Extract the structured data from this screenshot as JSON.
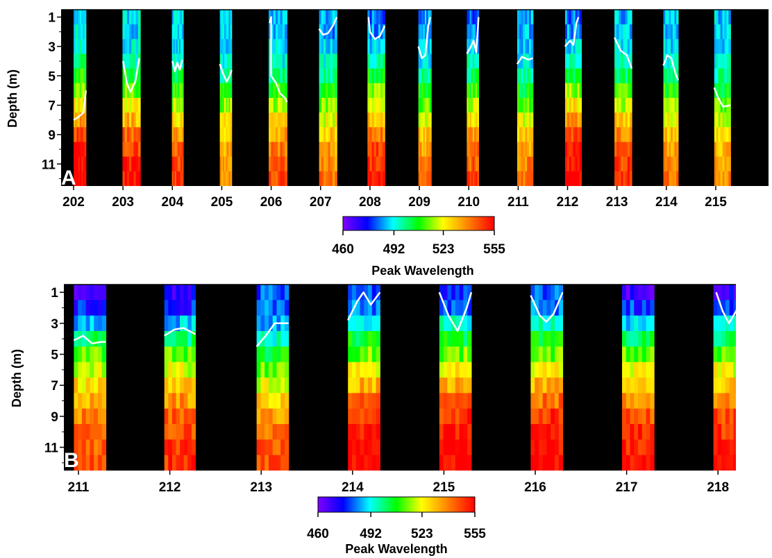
{
  "chart_data": [
    {
      "type": "heatmap",
      "panel_label": "A",
      "ylabel": "Depth (m)",
      "xlabel": "",
      "x_ticks": [
        "202",
        "203",
        "204",
        "205",
        "206",
        "207",
        "208",
        "209",
        "210",
        "211",
        "212",
        "213",
        "214",
        "215"
      ],
      "x_range": [
        202,
        215.3
      ],
      "y_ticks": [
        "1",
        "3",
        "5",
        "7",
        "9",
        "11"
      ],
      "y_range": [
        1,
        12
      ],
      "y_inverted": true,
      "value_unit": "Peak Wavelength (nm)",
      "background_no_data": "#000000",
      "contour_color": "#ffffff",
      "columns": [
        {
          "day": 202,
          "start": 202.0,
          "end": 202.25,
          "profile": [
            492,
            492,
            495,
            500,
            508,
            517,
            526,
            536,
            546,
            552,
            555,
            555
          ],
          "contour": [
            [
              202.0,
              8.0
            ],
            [
              202.1,
              7.8
            ],
            [
              202.2,
              7.5
            ],
            [
              202.25,
              6.0
            ]
          ]
        },
        {
          "day": 203,
          "start": 202.99,
          "end": 203.35,
          "profile": [
            490,
            490,
            492,
            496,
            504,
            513,
            522,
            532,
            541,
            547,
            551,
            553
          ],
          "contour": [
            [
              203.0,
              4.0
            ],
            [
              203.08,
              5.5
            ],
            [
              203.15,
              6.1
            ],
            [
              203.25,
              5.4
            ],
            [
              203.33,
              3.8
            ]
          ]
        },
        {
          "day": 204,
          "start": 203.99,
          "end": 204.22,
          "profile": [
            490,
            490,
            492,
            495,
            502,
            510,
            519,
            527,
            536,
            542,
            545,
            547
          ],
          "contour": [
            [
              204.0,
              4.0
            ],
            [
              204.05,
              4.7
            ],
            [
              204.1,
              4.1
            ],
            [
              204.15,
              4.6
            ],
            [
              204.2,
              3.9
            ]
          ]
        },
        {
          "day": 205,
          "start": 204.96,
          "end": 205.2,
          "profile": [
            488,
            488,
            490,
            493,
            500,
            508,
            516,
            523,
            529,
            533,
            535,
            536
          ],
          "contour": [
            [
              204.96,
              4.2
            ],
            [
              205.02,
              4.8
            ],
            [
              205.1,
              5.4
            ],
            [
              205.16,
              5.0
            ],
            [
              205.2,
              4.6
            ]
          ]
        },
        {
          "day": 206,
          "start": 205.95,
          "end": 206.32,
          "profile": [
            488,
            488,
            490,
            493,
            500,
            508,
            516,
            525,
            534,
            540,
            544,
            546
          ],
          "contour": [
            [
              205.97,
              1.4
            ],
            [
              206.0,
              1.0
            ],
            [
              206.0,
              5.0
            ],
            [
              206.1,
              5.5
            ],
            [
              206.18,
              6.2
            ],
            [
              206.28,
              6.5
            ],
            [
              206.32,
              6.8
            ]
          ]
        },
        {
          "day": 207,
          "start": 206.97,
          "end": 207.33,
          "profile": [
            485,
            485,
            488,
            492,
            498,
            506,
            514,
            522,
            530,
            535,
            538,
            540
          ],
          "contour": [
            [
              206.97,
              1.8
            ],
            [
              207.05,
              2.2
            ],
            [
              207.15,
              2.1
            ],
            [
              207.25,
              1.6
            ],
            [
              207.33,
              1.0
            ]
          ]
        },
        {
          "day": 208,
          "start": 207.95,
          "end": 208.3,
          "profile": [
            483,
            485,
            490,
            497,
            505,
            514,
            523,
            532,
            540,
            546,
            550,
            552
          ],
          "contour": [
            [
              207.97,
              1.0
            ],
            [
              208.0,
              2.0
            ],
            [
              208.1,
              2.5
            ],
            [
              208.2,
              2.3
            ],
            [
              208.3,
              1.6
            ]
          ]
        },
        {
          "day": 209,
          "start": 208.98,
          "end": 209.24,
          "profile": [
            485,
            485,
            488,
            492,
            498,
            506,
            514,
            522,
            530,
            535,
            538,
            540
          ],
          "contour": [
            [
              208.98,
              3.0
            ],
            [
              209.05,
              3.8
            ],
            [
              209.12,
              3.6
            ],
            [
              209.18,
              1.6
            ],
            [
              209.22,
              1.0
            ]
          ]
        },
        {
          "day": 210,
          "start": 209.96,
          "end": 210.2,
          "profile": [
            480,
            483,
            488,
            495,
            502,
            510,
            518,
            526,
            534,
            540,
            543,
            545
          ],
          "contour": [
            [
              209.96,
              3.5
            ],
            [
              210.03,
              3.1
            ],
            [
              210.1,
              2.6
            ],
            [
              210.15,
              3.4
            ],
            [
              210.2,
              1.0
            ]
          ]
        },
        {
          "day": 211,
          "start": 210.98,
          "end": 211.3,
          "profile": [
            487,
            487,
            489,
            492,
            498,
            505,
            513,
            521,
            529,
            535,
            538,
            540
          ],
          "contour": [
            [
              210.98,
              4.2
            ],
            [
              211.08,
              3.7
            ],
            [
              211.2,
              3.9
            ],
            [
              211.3,
              3.8
            ]
          ]
        },
        {
          "day": 212,
          "start": 211.95,
          "end": 212.28,
          "profile": [
            482,
            485,
            490,
            497,
            506,
            516,
            526,
            536,
            545,
            551,
            554,
            555
          ],
          "contour": [
            [
              211.95,
              3.0
            ],
            [
              212.05,
              2.6
            ],
            [
              212.12,
              2.9
            ],
            [
              212.18,
              1.4
            ],
            [
              212.22,
              1.0
            ]
          ]
        },
        {
          "day": 213,
          "start": 212.95,
          "end": 213.3,
          "profile": [
            488,
            488,
            490,
            494,
            501,
            510,
            519,
            529,
            538,
            544,
            547,
            549
          ],
          "contour": [
            [
              212.95,
              2.4
            ],
            [
              213.08,
              3.3
            ],
            [
              213.2,
              3.6
            ],
            [
              213.3,
              4.5
            ]
          ]
        },
        {
          "day": 214,
          "start": 213.94,
          "end": 214.24,
          "profile": [
            488,
            488,
            490,
            493,
            500,
            508,
            516,
            524,
            531,
            536,
            538,
            540
          ],
          "contour": [
            [
              213.94,
              4.3
            ],
            [
              214.02,
              3.6
            ],
            [
              214.1,
              3.8
            ],
            [
              214.18,
              4.8
            ],
            [
              214.24,
              5.3
            ]
          ]
        },
        {
          "day": 215,
          "start": 214.97,
          "end": 215.3,
          "profile": [
            488,
            488,
            490,
            493,
            498,
            505,
            512,
            520,
            527,
            532,
            535,
            537
          ],
          "contour": [
            [
              214.97,
              5.8
            ],
            [
              215.05,
              6.5
            ],
            [
              215.15,
              7.1
            ],
            [
              215.3,
              7.0
            ]
          ]
        }
      ]
    },
    {
      "type": "heatmap",
      "panel_label": "B",
      "ylabel": "Depth (m)",
      "xlabel": "",
      "x_ticks": [
        "211",
        "212",
        "213",
        "214",
        "215",
        "216",
        "217",
        "218"
      ],
      "x_range": [
        211,
        218.32
      ],
      "y_ticks": [
        "1",
        "3",
        "5",
        "7",
        "9",
        "11"
      ],
      "y_range": [
        1,
        12
      ],
      "y_inverted": true,
      "value_unit": "Peak Wavelength (nm)",
      "background_no_data": "#000000",
      "contour_color": "#ffffff",
      "columns": [
        {
          "day": 211,
          "start": 210.95,
          "end": 211.3,
          "profile": [
            470,
            475,
            488,
            500,
            512,
            520,
            527,
            533,
            538,
            541,
            543,
            544
          ],
          "contour": [
            [
              210.95,
              4.1
            ],
            [
              211.05,
              3.8
            ],
            [
              211.15,
              4.3
            ],
            [
              211.25,
              4.2
            ],
            [
              211.3,
              4.2
            ]
          ]
        },
        {
          "day": 212,
          "start": 211.94,
          "end": 212.28,
          "profile": [
            470,
            476,
            488,
            500,
            512,
            521,
            528,
            536,
            542,
            546,
            548,
            549
          ],
          "contour": [
            [
              211.94,
              3.8
            ],
            [
              212.05,
              3.4
            ],
            [
              212.15,
              3.3
            ],
            [
              212.28,
              3.7
            ]
          ]
        },
        {
          "day": 213,
          "start": 212.95,
          "end": 213.3,
          "profile": [
            480,
            482,
            488,
            495,
            505,
            513,
            521,
            529,
            536,
            540,
            543,
            545
          ],
          "contour": [
            [
              212.95,
              4.5
            ],
            [
              213.05,
              3.8
            ],
            [
              213.15,
              3.0
            ],
            [
              213.3,
              3.0
            ]
          ]
        },
        {
          "day": 214,
          "start": 213.95,
          "end": 214.3,
          "profile": [
            478,
            482,
            494,
            505,
            514,
            523,
            532,
            541,
            549,
            553,
            555,
            555
          ],
          "contour": [
            [
              213.95,
              2.8
            ],
            [
              214.05,
              1.6
            ],
            [
              214.12,
              1.0
            ],
            [
              214.2,
              1.8
            ],
            [
              214.3,
              1.0
            ]
          ]
        },
        {
          "day": 215,
          "start": 214.95,
          "end": 215.3,
          "profile": [
            478,
            482,
            494,
            505,
            514,
            523,
            532,
            541,
            549,
            553,
            555,
            555
          ],
          "contour": [
            [
              214.95,
              1.0
            ],
            [
              215.05,
              2.5
            ],
            [
              215.15,
              3.5
            ],
            [
              215.25,
              2.0
            ],
            [
              215.3,
              1.0
            ]
          ]
        },
        {
          "day": 216,
          "start": 215.95,
          "end": 216.3,
          "profile": [
            480,
            484,
            494,
            504,
            514,
            523,
            532,
            541,
            549,
            553,
            555,
            555
          ],
          "contour": [
            [
              215.95,
              1.2
            ],
            [
              216.05,
              2.5
            ],
            [
              216.12,
              2.9
            ],
            [
              216.2,
              2.4
            ],
            [
              216.3,
              1.0
            ]
          ]
        },
        {
          "day": 217,
          "start": 216.95,
          "end": 217.3,
          "profile": [
            468,
            478,
            490,
            502,
            512,
            521,
            530,
            538,
            545,
            549,
            552,
            553
          ],
          "contour": []
        },
        {
          "day": 218,
          "start": 217.95,
          "end": 218.3,
          "profile": [
            470,
            478,
            490,
            502,
            512,
            522,
            531,
            540,
            546,
            549,
            551,
            552
          ],
          "contour": [
            [
              217.98,
              1.0
            ],
            [
              218.05,
              2.2
            ],
            [
              218.12,
              3.0
            ],
            [
              218.2,
              2.2
            ],
            [
              218.28,
              1.0
            ]
          ]
        }
      ]
    }
  ],
  "colorbars": [
    {
      "panel": "A",
      "ticks": [
        "460",
        "492",
        "523",
        "555"
      ],
      "range": [
        460,
        555
      ],
      "label": "Peak Wavelength"
    },
    {
      "panel": "B",
      "ticks": [
        "460",
        "492",
        "523",
        "555"
      ],
      "range": [
        460,
        555
      ],
      "label": "Peak Wavelength"
    }
  ],
  "colormap": [
    "#7f00ff",
    "#0000ff",
    "#00ffff",
    "#00ff00",
    "#ffff00",
    "#ff8000",
    "#ff0000"
  ]
}
